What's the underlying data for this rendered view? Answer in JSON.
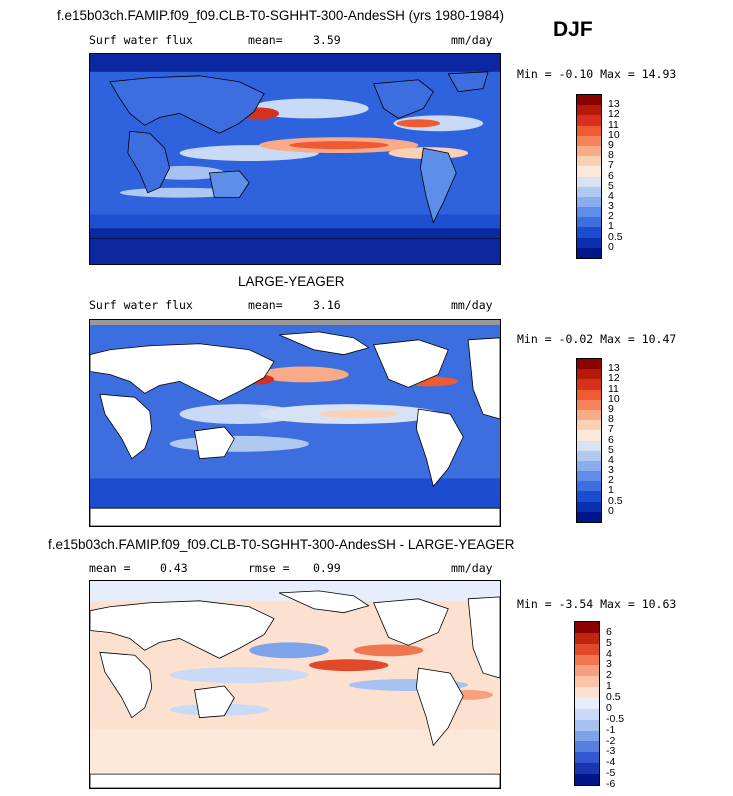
{
  "season": "DJF",
  "top": {
    "title": "f.e15b03ch.FAMIP.f09_f09.CLB-T0-SGHHT-300-AndesSH (yrs 1980-1984)",
    "var_label": "Surf water flux",
    "mean_label": "mean=",
    "mean_value": "3.59",
    "units": "mm/day",
    "min_label": "Min =",
    "min_value": "-0.10",
    "max_label": "Max =",
    "max_value": "14.93",
    "colorbar_labels": [
      "13",
      "12",
      "11",
      "10",
      "9",
      "8",
      "7",
      "6",
      "5",
      "4",
      "3",
      "2",
      "1",
      "0.5",
      "0"
    ]
  },
  "middle": {
    "title": "LARGE-YEAGER",
    "var_label": "Surf water flux",
    "mean_label": "mean=",
    "mean_value": "3.16",
    "units": "mm/day",
    "min_label": "Min =",
    "min_value": "-0.02",
    "max_label": "Max =",
    "max_value": "10.47",
    "colorbar_labels": [
      "13",
      "12",
      "11",
      "10",
      "9",
      "8",
      "7",
      "6",
      "5",
      "4",
      "3",
      "2",
      "1",
      "0.5",
      "0"
    ]
  },
  "bottom": {
    "title": "f.e15b03ch.FAMIP.f09_f09.CLB-T0-SGHHT-300-AndesSH - LARGE-YEAGER",
    "mean_label": "mean =",
    "mean_value": "0.43",
    "rmse_label": "rmse =",
    "rmse_value": "0.99",
    "units": "mm/day",
    "min_label": "Min =",
    "min_value": "-3.54",
    "max_label": "Max =",
    "max_value": "10.63",
    "colorbar_labels": [
      "6",
      "5",
      "4",
      "3",
      "2",
      "1",
      "0.5",
      "0",
      "-0.5",
      "-1",
      "-2",
      "-3",
      "-4",
      "-5",
      "-6"
    ]
  },
  "colors": {
    "seq_scale": [
      "#8b0000",
      "#b51a06",
      "#d7301f",
      "#ef5a32",
      "#f5845c",
      "#f9ab88",
      "#fbd0b5",
      "#fbe8d9",
      "#d7e3f5",
      "#b0c9f0",
      "#88aeed",
      "#5f8ee8",
      "#3c6ee0",
      "#1c4ccf",
      "#0a2fb0",
      "#00168a"
    ],
    "div_scale": [
      "#8b0000",
      "#c2250f",
      "#e04a2a",
      "#f07651",
      "#f7a07d",
      "#fbc4a8",
      "#fde1d0",
      "#e6eefb",
      "#c8daf6",
      "#a7c2f1",
      "#7ea3ea",
      "#587fe0",
      "#3257cf",
      "#1a35b0",
      "#00168a"
    ],
    "land": "#ffffff",
    "coast": "#000000"
  }
}
